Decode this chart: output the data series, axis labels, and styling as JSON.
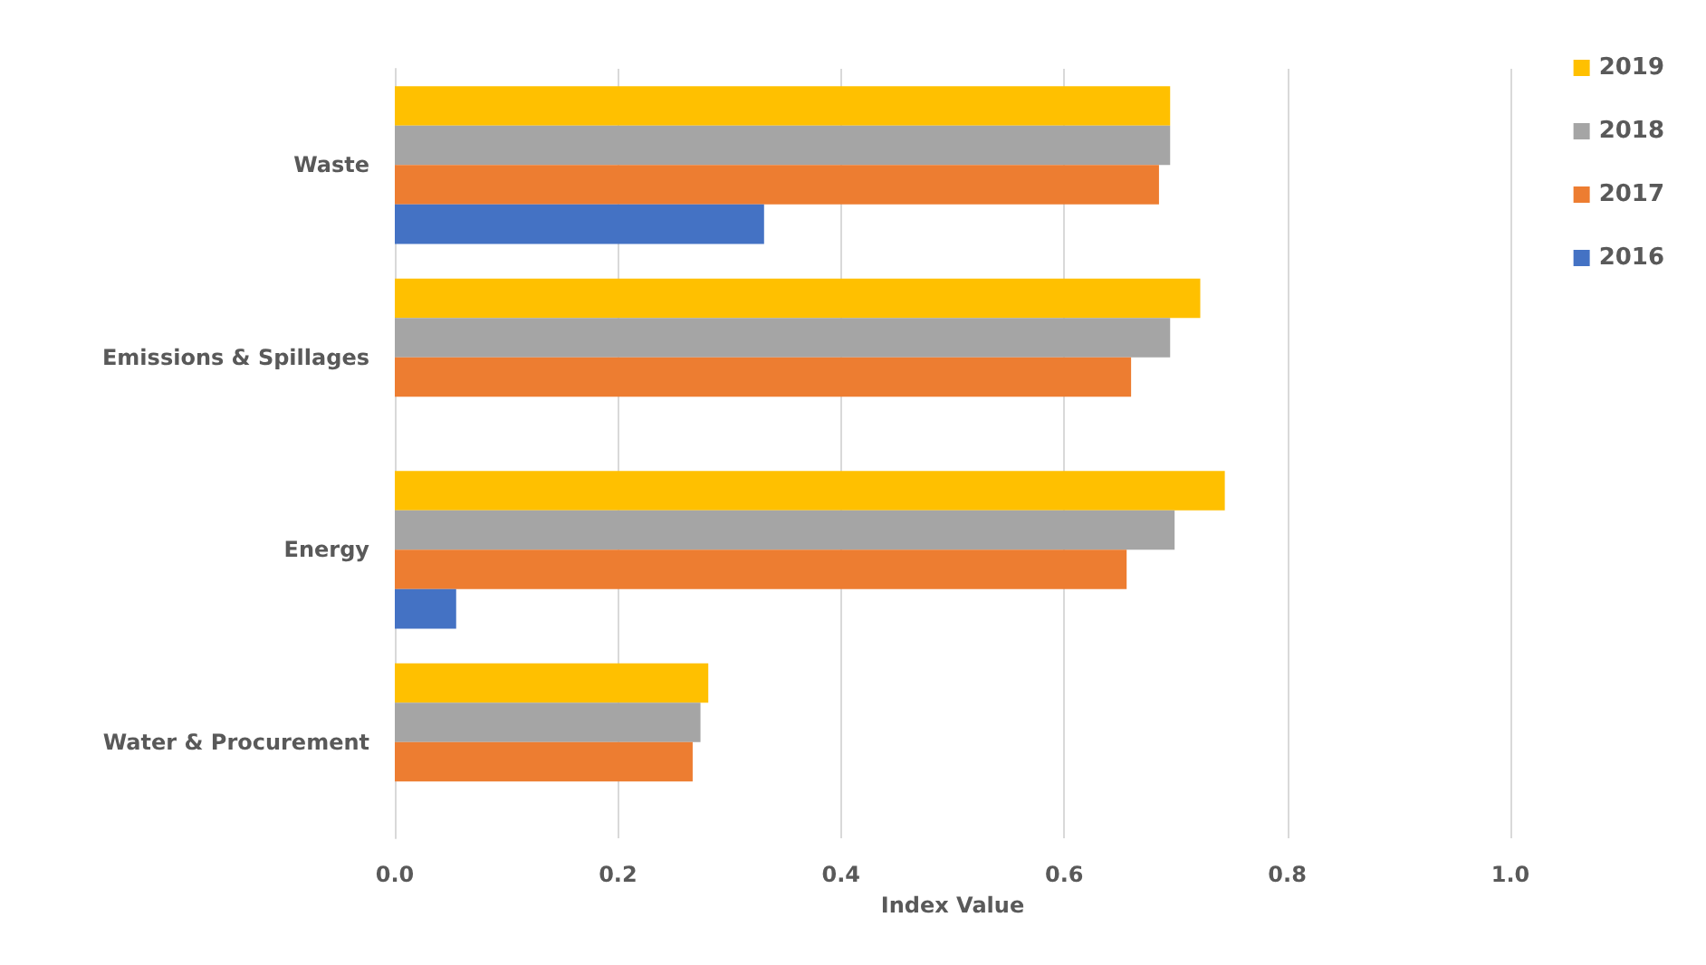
{
  "chart_data": {
    "type": "bar",
    "orientation": "horizontal",
    "xlabel": "Index Value",
    "categories": [
      "Waste",
      "Emissions & Spillages",
      "Energy",
      "Water & Procurement"
    ],
    "series": [
      {
        "name": "2019",
        "color": "#ffc000",
        "values": [
          0.695,
          0.722,
          0.744,
          0.281
        ]
      },
      {
        "name": "2018",
        "color": "#a5a5a5",
        "values": [
          0.695,
          0.695,
          0.699,
          0.274
        ]
      },
      {
        "name": "2017",
        "color": "#ed7d31",
        "values": [
          0.685,
          0.66,
          0.656,
          0.267
        ]
      },
      {
        "name": "2016",
        "color": "#4472c4",
        "values": [
          0.331,
          null,
          0.055,
          null
        ]
      }
    ],
    "xlim": [
      0,
      1
    ],
    "xticks": [
      {
        "value": 0,
        "label": "0.0"
      },
      {
        "value": 0.2,
        "label": "0.2"
      },
      {
        "value": 0.4,
        "label": "0.4"
      },
      {
        "value": 0.6,
        "label": "0.6"
      },
      {
        "value": 0.8,
        "label": "0.8"
      },
      {
        "value": 1,
        "label": "1.0"
      }
    ],
    "grid": "x",
    "legend": "top right"
  }
}
